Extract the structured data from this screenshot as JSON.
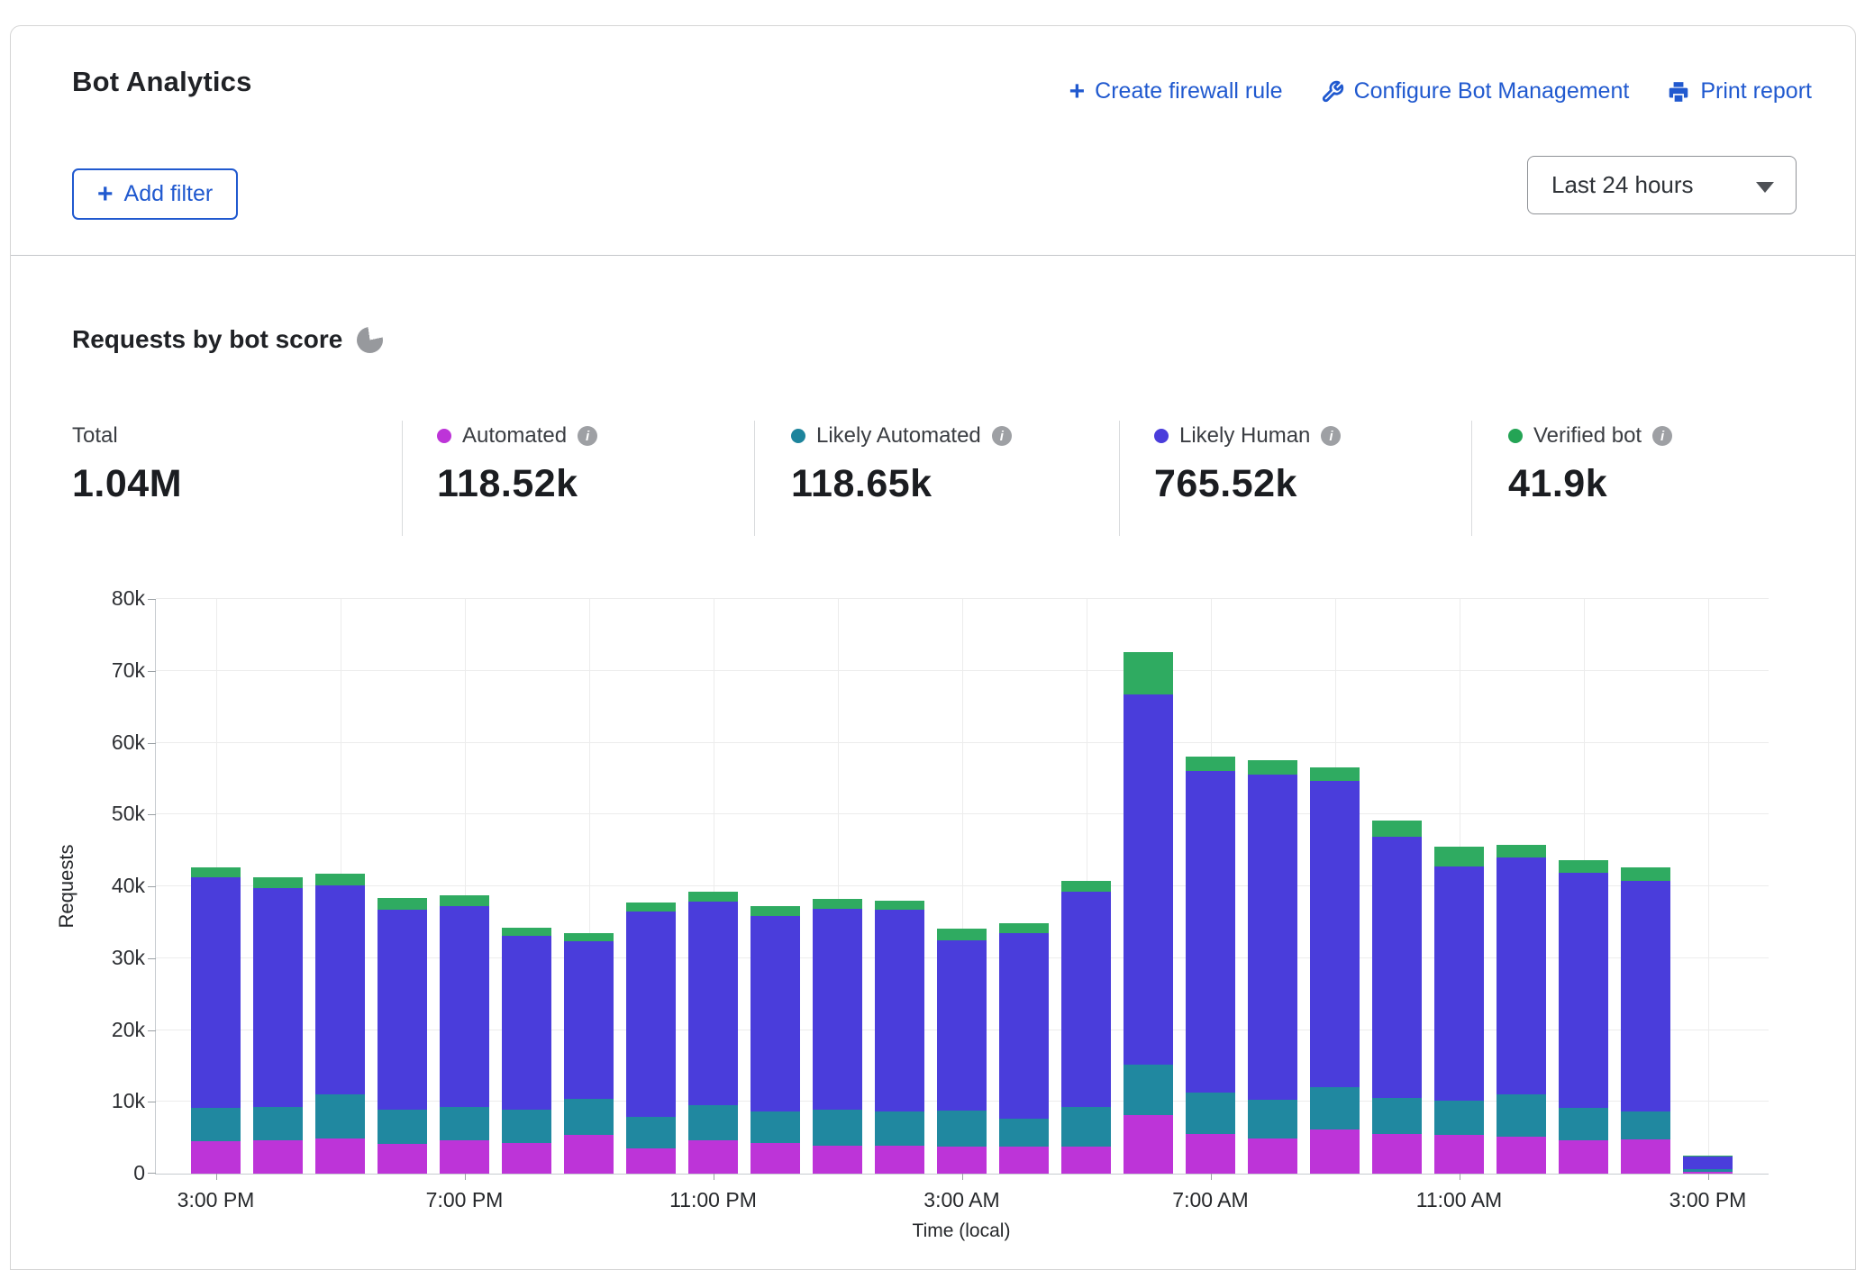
{
  "header": {
    "title": "Bot Analytics",
    "actions": [
      {
        "icon": "plus-icon",
        "label": "Create firewall rule"
      },
      {
        "icon": "wrench-icon",
        "label": "Configure Bot Management"
      },
      {
        "icon": "printer-icon",
        "label": "Print report"
      }
    ],
    "add_filter_label": "Add filter",
    "time_range": "Last 24 hours"
  },
  "section": {
    "title": "Requests by bot score"
  },
  "stats": [
    {
      "label": "Total",
      "value": "1.04M",
      "color": null
    },
    {
      "label": "Automated",
      "value": "118.52k",
      "color": "#bd34d8"
    },
    {
      "label": "Likely Automated",
      "value": "118.65k",
      "color": "#1d849c"
    },
    {
      "label": "Likely Human",
      "value": "765.52k",
      "color": "#4a3ddb"
    },
    {
      "label": "Verified bot",
      "value": "41.9k",
      "color": "#24a455"
    }
  ],
  "chart_data": {
    "type": "bar",
    "subtype": "stacked",
    "title": "Requests by bot score",
    "xlabel": "Time (local)",
    "ylabel": "Requests",
    "ylim": [
      0,
      80000
    ],
    "grid": true,
    "y_ticks": [
      "0",
      "10k",
      "20k",
      "30k",
      "40k",
      "50k",
      "60k",
      "70k",
      "80k"
    ],
    "x_tick_labels": [
      "3:00 PM",
      "7:00 PM",
      "11:00 PM",
      "3:00 AM",
      "7:00 AM",
      "11:00 AM",
      "3:00 PM"
    ],
    "series_names": [
      "Automated",
      "Likely Automated",
      "Likely Human",
      "Verified bot"
    ],
    "series_colors": {
      "automated": "#bd34d8",
      "likely_automated": "#2088a0",
      "likely_human": "#4a3ddb",
      "verified_bot": "#2fab61"
    },
    "bars": [
      {
        "time": "3:00 PM",
        "automated": 4500,
        "likely_automated": 4700,
        "likely_human": 32000,
        "verified_bot": 1400
      },
      {
        "time": "4:00 PM",
        "automated": 4600,
        "likely_automated": 4700,
        "likely_human": 30400,
        "verified_bot": 1600
      },
      {
        "time": "5:00 PM",
        "automated": 4900,
        "likely_automated": 6100,
        "likely_human": 29100,
        "verified_bot": 1700
      },
      {
        "time": "6:00 PM",
        "automated": 4200,
        "likely_automated": 4700,
        "likely_human": 27900,
        "verified_bot": 1600
      },
      {
        "time": "7:00 PM",
        "automated": 4600,
        "likely_automated": 4700,
        "likely_human": 28000,
        "verified_bot": 1400
      },
      {
        "time": "8:00 PM",
        "automated": 4300,
        "likely_automated": 4600,
        "likely_human": 24200,
        "verified_bot": 1200
      },
      {
        "time": "9:00 PM",
        "automated": 5400,
        "likely_automated": 5000,
        "likely_human": 21900,
        "verified_bot": 1200
      },
      {
        "time": "10:00 PM",
        "automated": 3500,
        "likely_automated": 4400,
        "likely_human": 28600,
        "verified_bot": 1200
      },
      {
        "time": "11:00 PM",
        "automated": 4600,
        "likely_automated": 4900,
        "likely_human": 28400,
        "verified_bot": 1300
      },
      {
        "time": "12:00 AM",
        "automated": 4300,
        "likely_automated": 4400,
        "likely_human": 27200,
        "verified_bot": 1300
      },
      {
        "time": "1:00 AM",
        "automated": 3900,
        "likely_automated": 5000,
        "likely_human": 28000,
        "verified_bot": 1300
      },
      {
        "time": "2:00 AM",
        "automated": 3900,
        "likely_automated": 4800,
        "likely_human": 28100,
        "verified_bot": 1200
      },
      {
        "time": "3:00 AM",
        "automated": 3800,
        "likely_automated": 5000,
        "likely_human": 23700,
        "verified_bot": 1600
      },
      {
        "time": "4:00 AM",
        "automated": 3800,
        "likely_automated": 3900,
        "likely_human": 25800,
        "verified_bot": 1400
      },
      {
        "time": "5:00 AM",
        "automated": 3800,
        "likely_automated": 5500,
        "likely_human": 30000,
        "verified_bot": 1400
      },
      {
        "time": "6:00 AM",
        "automated": 8200,
        "likely_automated": 7000,
        "likely_human": 51500,
        "verified_bot": 5900
      },
      {
        "time": "7:00 AM",
        "automated": 5500,
        "likely_automated": 5800,
        "likely_human": 44800,
        "verified_bot": 2000
      },
      {
        "time": "8:00 AM",
        "automated": 4900,
        "likely_automated": 5400,
        "likely_human": 45200,
        "verified_bot": 2100
      },
      {
        "time": "9:00 AM",
        "automated": 6200,
        "likely_automated": 5800,
        "likely_human": 42700,
        "verified_bot": 1900
      },
      {
        "time": "10:00 AM",
        "automated": 5500,
        "likely_automated": 5000,
        "likely_human": 36400,
        "verified_bot": 2200
      },
      {
        "time": "11:00 AM",
        "automated": 5400,
        "likely_automated": 4800,
        "likely_human": 32500,
        "verified_bot": 2800
      },
      {
        "time": "12:00 PM",
        "automated": 5100,
        "likely_automated": 5900,
        "likely_human": 33000,
        "verified_bot": 1800
      },
      {
        "time": "1:00 PM",
        "automated": 4600,
        "likely_automated": 4600,
        "likely_human": 32700,
        "verified_bot": 1800
      },
      {
        "time": "2:00 PM",
        "automated": 4800,
        "likely_automated": 3900,
        "likely_human": 32000,
        "verified_bot": 2000
      },
      {
        "time": "3:00 PM",
        "automated": 300,
        "likely_automated": 300,
        "likely_human": 1800,
        "verified_bot": 100
      }
    ]
  }
}
